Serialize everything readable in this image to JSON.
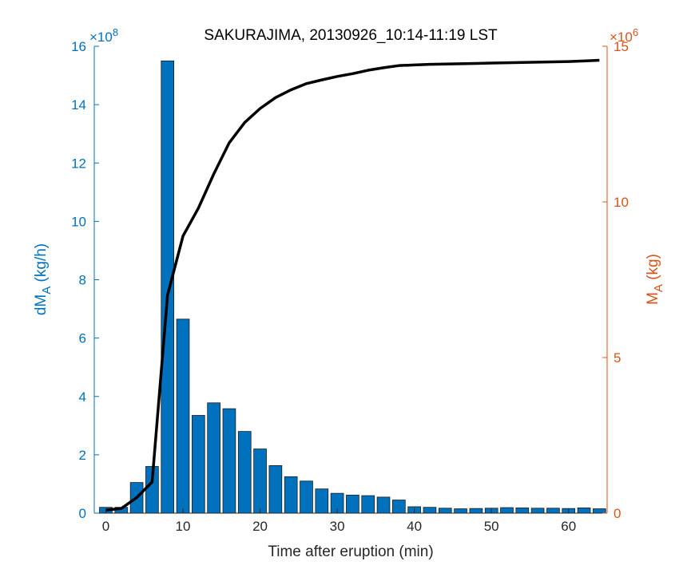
{
  "chart_data": {
    "type": "bar",
    "title": "SAKURAJIMA, 20130926_10:14-11:19 LST",
    "xlabel": "Time after eruption (min)",
    "xlim": [
      -1.5,
      65
    ],
    "x_ticks": [
      0,
      10,
      20,
      30,
      40,
      50,
      60
    ],
    "y_left": {
      "label_main": "dM",
      "label_sub": "A",
      "label_unit": " (kg/h)",
      "exponent_base": "×10",
      "exponent_power": "8",
      "ylim": [
        0,
        16
      ],
      "ticks": [
        0,
        2,
        4,
        6,
        8,
        10,
        12,
        14,
        16
      ],
      "color": "#0072BD"
    },
    "y_right": {
      "label_main": "M",
      "label_sub": "A",
      "label_unit": " (kg)",
      "exponent_base": "×10",
      "exponent_power": "6",
      "ylim": [
        0,
        15
      ],
      "ticks": [
        0,
        5,
        10,
        15
      ],
      "color": "#D95319"
    },
    "bar_series": {
      "axis": "left",
      "color": "#0072BD",
      "x": [
        0,
        2,
        4,
        6,
        8,
        10,
        12,
        14,
        16,
        18,
        20,
        22,
        24,
        26,
        28,
        30,
        32,
        34,
        36,
        38,
        40,
        42,
        44,
        46,
        48,
        50,
        52,
        54,
        56,
        58,
        60,
        62,
        64
      ],
      "values": [
        0.2,
        0.2,
        1.05,
        1.6,
        15.5,
        6.65,
        3.35,
        3.78,
        3.58,
        2.8,
        2.2,
        1.63,
        1.25,
        1.1,
        0.83,
        0.68,
        0.62,
        0.6,
        0.55,
        0.45,
        0.22,
        0.2,
        0.17,
        0.15,
        0.16,
        0.17,
        0.19,
        0.18,
        0.17,
        0.17,
        0.16,
        0.18,
        0.15
      ]
    },
    "line_series": {
      "axis": "right",
      "color": "#000000",
      "x": [
        0,
        2,
        4,
        6,
        8,
        10,
        12,
        14,
        16,
        18,
        20,
        22,
        24,
        26,
        28,
        30,
        32,
        34,
        36,
        38,
        40,
        42,
        44,
        46,
        48,
        50,
        52,
        54,
        56,
        58,
        60,
        62,
        64
      ],
      "values": [
        0.1,
        0.15,
        0.5,
        1.0,
        7.0,
        8.9,
        9.8,
        10.9,
        11.9,
        12.55,
        13.0,
        13.35,
        13.6,
        13.8,
        13.92,
        14.03,
        14.12,
        14.23,
        14.31,
        14.38,
        14.4,
        14.42,
        14.43,
        14.44,
        14.45,
        14.46,
        14.47,
        14.48,
        14.49,
        14.5,
        14.51,
        14.53,
        14.55
      ]
    }
  }
}
